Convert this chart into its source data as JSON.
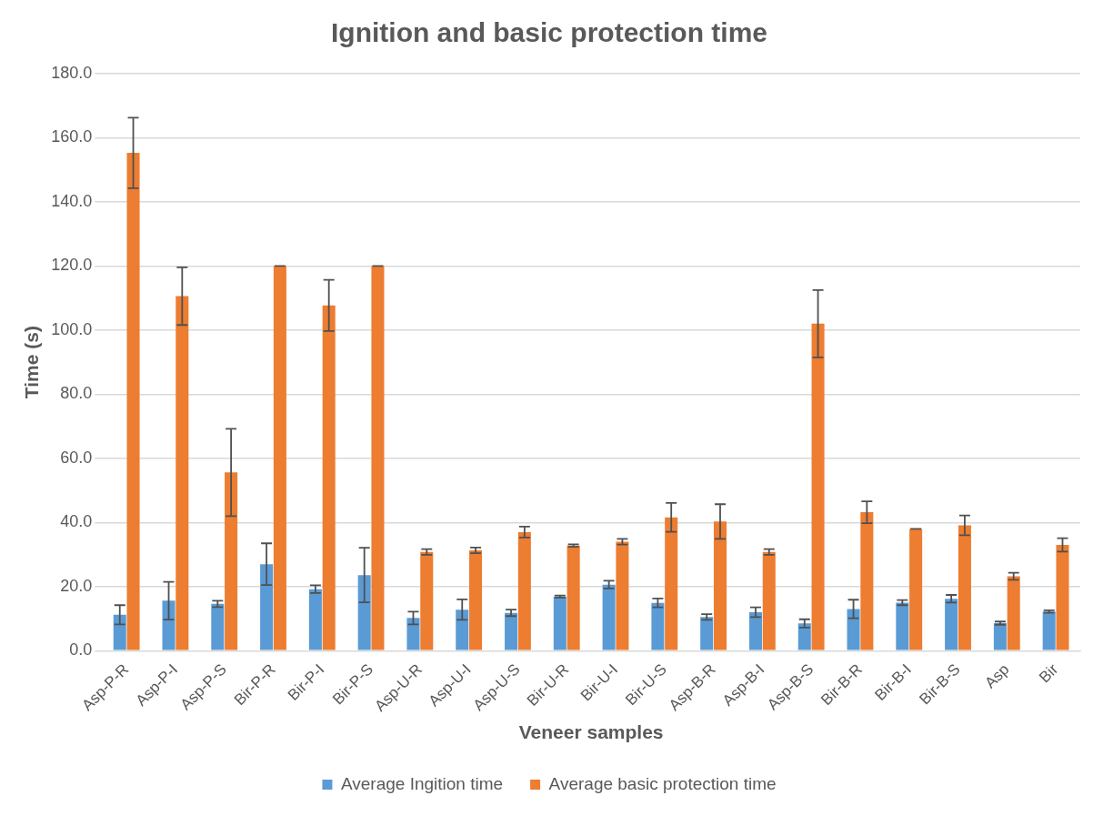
{
  "chart_data": {
    "type": "bar",
    "title": "Ignition and basic protection time",
    "xlabel": "Veneer samples",
    "ylabel": "Time (s)",
    "categories": [
      "Asp-P-R",
      "Asp-P-I",
      "Asp-P-S",
      "Bir-P-R",
      "Bir-P-I",
      "Bir-P-S",
      "Asp-U-R",
      "Asp-U-I",
      "Asp-U-S",
      "Bir-U-R",
      "Bir-U-I",
      "Bir-U-S",
      "Asp-B-R",
      "Asp-B-I",
      "Asp-B-S",
      "Bir-B-R",
      "Bir-B-I",
      "Bir-B-S",
      "Asp",
      "Bir"
    ],
    "series": [
      {
        "name": "Average Ingition time",
        "color": "#5b9bd5",
        "values": [
          11.2,
          15.6,
          14.6,
          27,
          19.2,
          23.6,
          10.2,
          12.8,
          11.8,
          16.9,
          20.6,
          14.9,
          10.5,
          12,
          8.5,
          13,
          15,
          16.2,
          8.6,
          12.2
        ],
        "errors": [
          3,
          5.9,
          1,
          6.5,
          1.2,
          8.5,
          2,
          3.2,
          1,
          0.3,
          1.2,
          1.4,
          0.9,
          1.5,
          1.3,
          2.9,
          0.8,
          1.2,
          0.5,
          0.4
        ]
      },
      {
        "name": "Average basic protection time",
        "color": "#ed7d31",
        "values": [
          155.3,
          110.6,
          55.6,
          120,
          107.7,
          120,
          30.8,
          31.3,
          37,
          32.8,
          34,
          41.6,
          40.3,
          30.8,
          102,
          43.2,
          38,
          39.1,
          23.2,
          33
        ],
        "errors": [
          11,
          9,
          13.6,
          0,
          8,
          0,
          0.9,
          0.9,
          1.7,
          0.4,
          0.9,
          4.5,
          5.4,
          0.9,
          10.5,
          3.4,
          0,
          3.1,
          1.1,
          2.1
        ]
      }
    ],
    "ylim": [
      0,
      180
    ],
    "yticks": [
      {
        "value": 0,
        "label": "0.0"
      },
      {
        "value": 20,
        "label": "20.0"
      },
      {
        "value": 40,
        "label": "40.0"
      },
      {
        "value": 60,
        "label": "60.0"
      },
      {
        "value": 80,
        "label": "80.0"
      },
      {
        "value": 100,
        "label": "100.0"
      },
      {
        "value": 120,
        "label": "120.0"
      },
      {
        "value": 140,
        "label": "140.0"
      },
      {
        "value": 160,
        "label": "160.0"
      },
      {
        "value": 180,
        "label": "180.0"
      }
    ],
    "grid": "y",
    "legend": "bottom"
  }
}
